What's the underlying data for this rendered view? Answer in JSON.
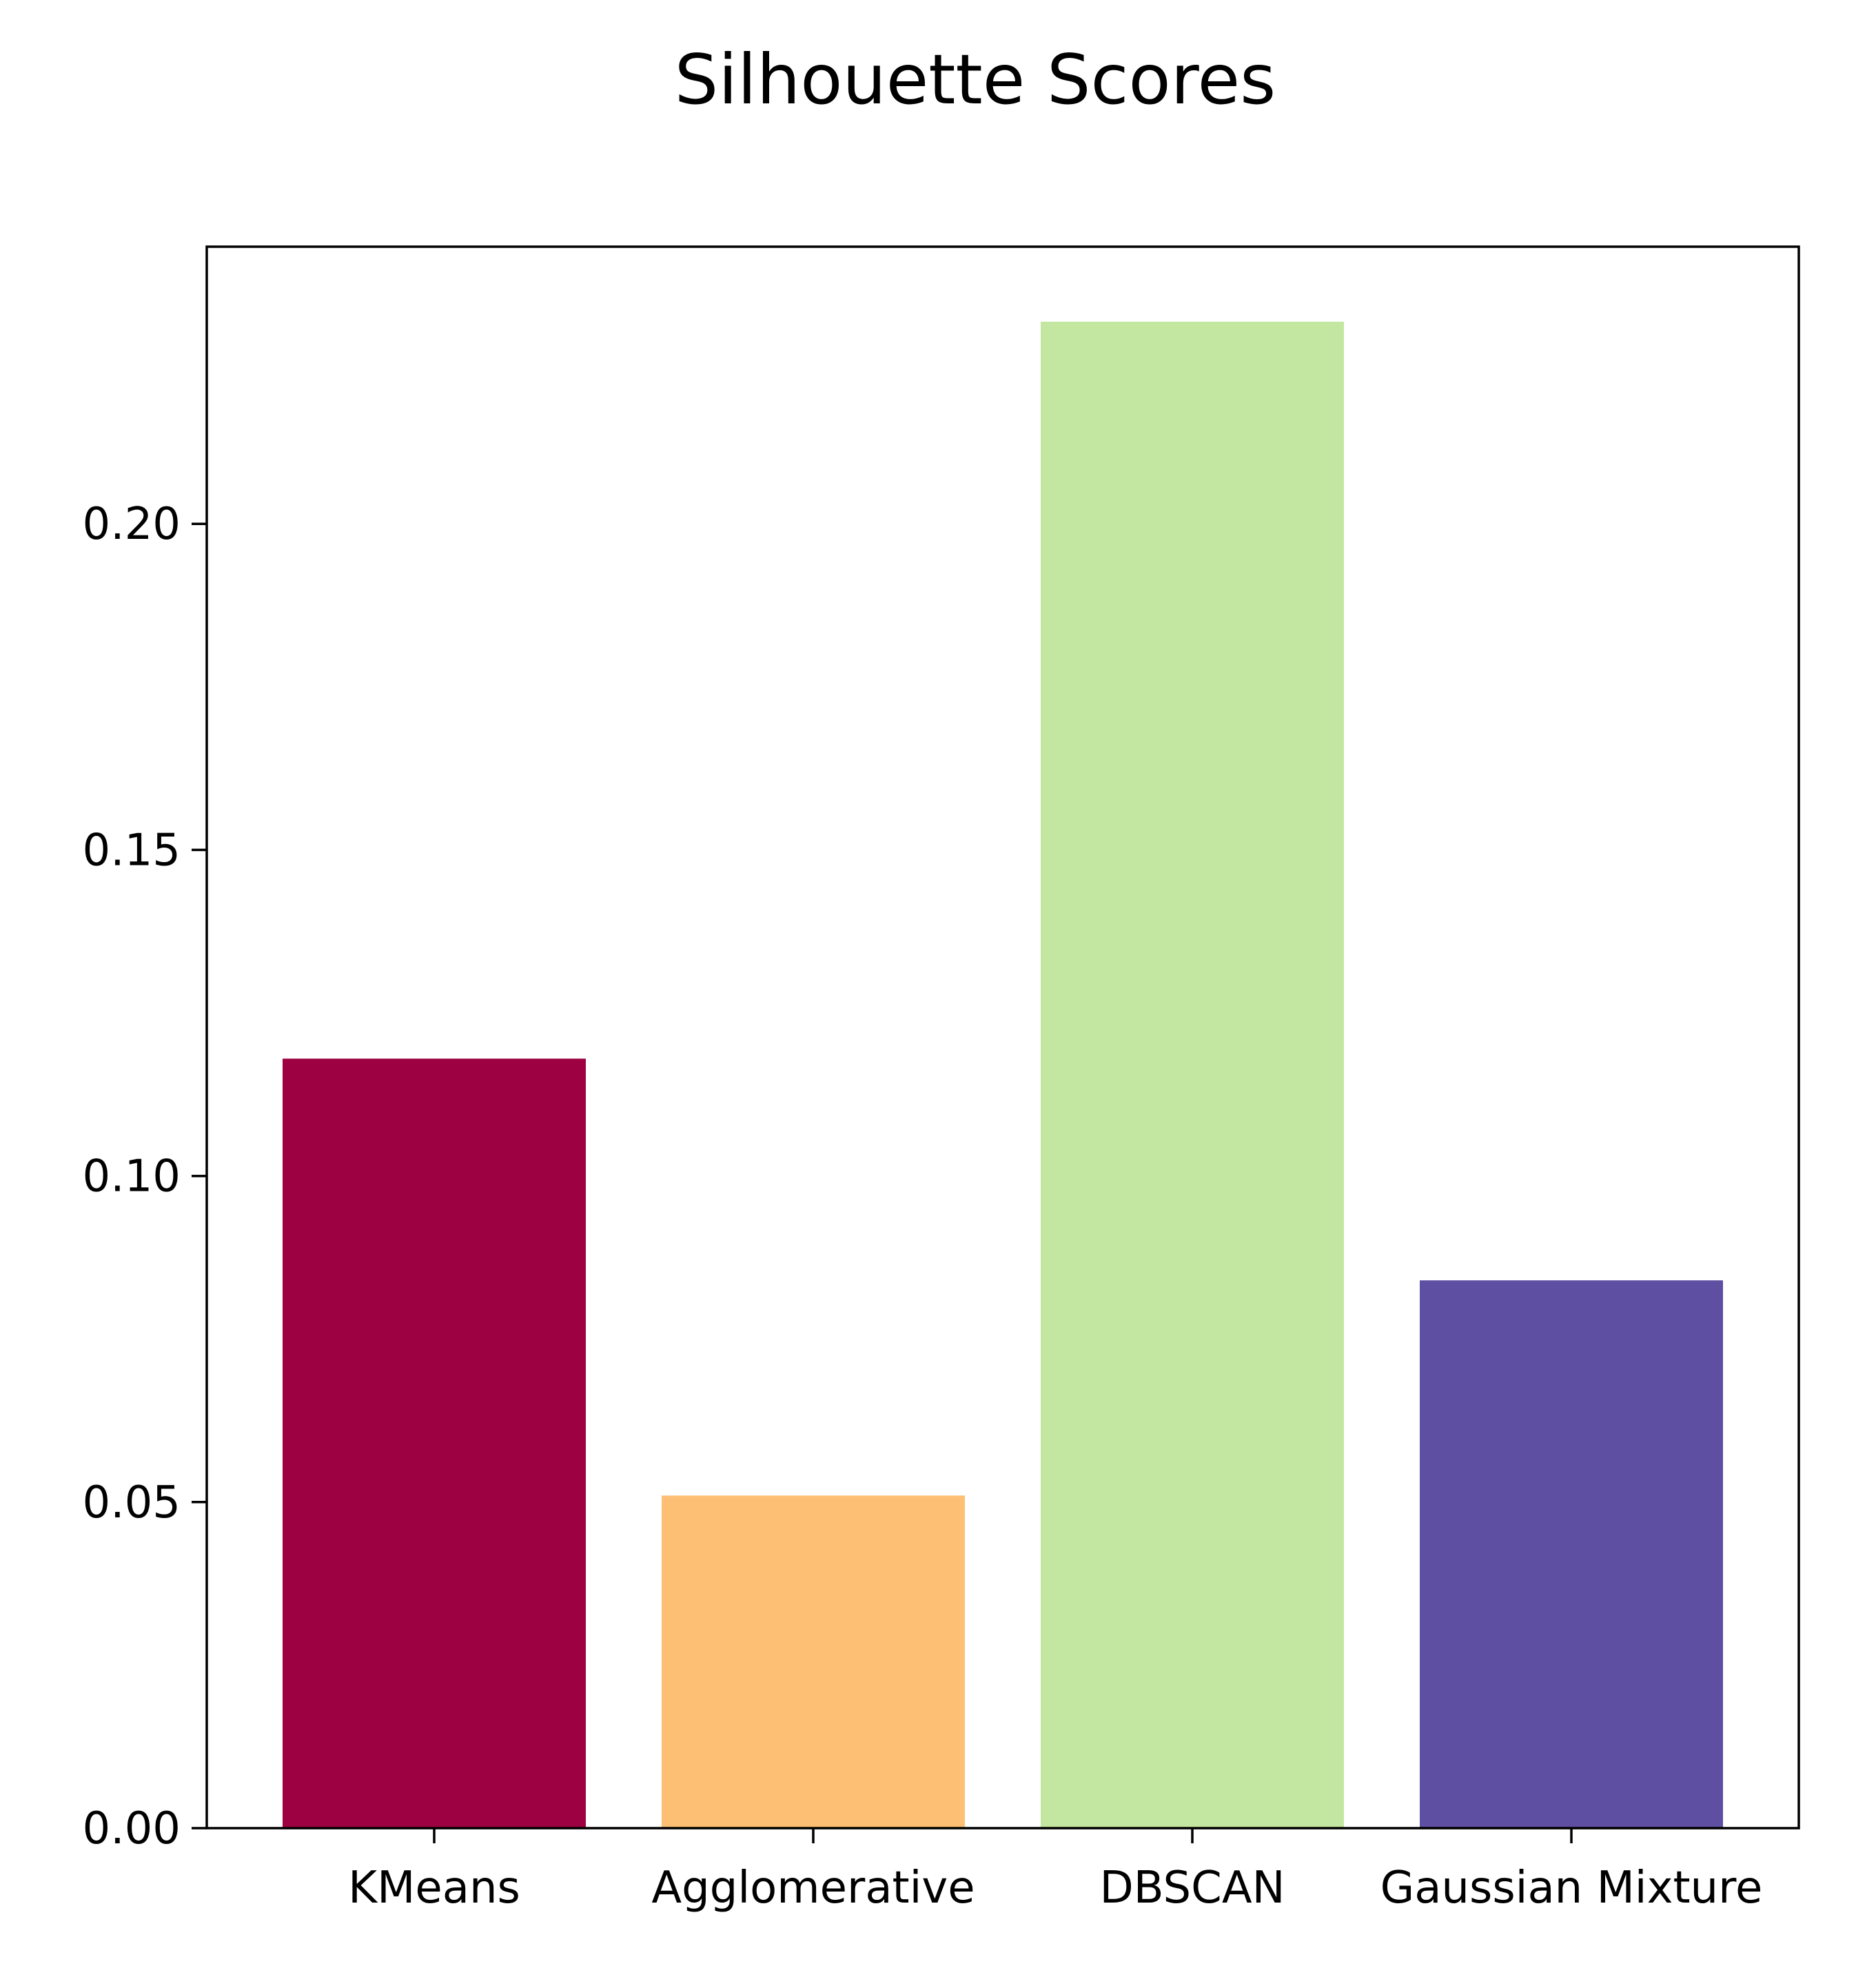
{
  "chart_data": {
    "type": "bar",
    "title": "Silhouette Scores",
    "xlabel": "",
    "ylabel": "",
    "categories": [
      "KMeans",
      "Agglomerative",
      "DBSCAN",
      "Gaussian Mixture"
    ],
    "values": [
      0.118,
      0.051,
      0.231,
      0.084
    ],
    "colors": [
      "#9e0142",
      "#fdbf74",
      "#c3e6a1",
      "#5e4fa2"
    ],
    "ylim": [
      0,
      0.2425
    ],
    "yticks": [
      0.0,
      0.05,
      0.1,
      0.15,
      0.2
    ],
    "ytick_labels": [
      "0.00",
      "0.05",
      "0.10",
      "0.15",
      "0.20"
    ],
    "grid": false,
    "legend": "none"
  }
}
